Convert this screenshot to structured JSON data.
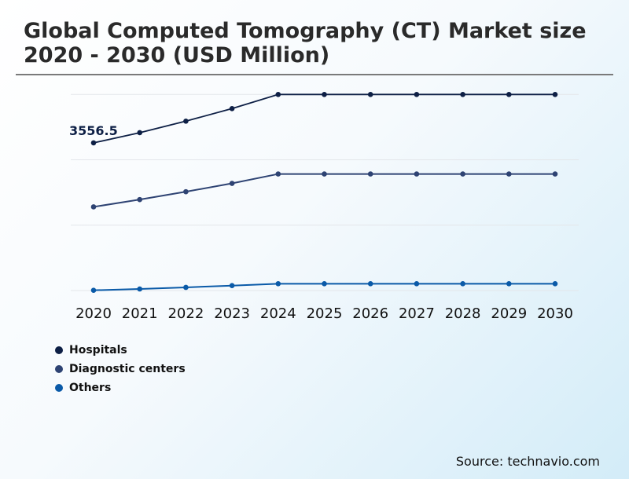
{
  "title": "Global Computed Tomography (CT) Market size 2020 - 2030 (USD Million)",
  "source": "Source: technavio.com",
  "chart_data": {
    "type": "line",
    "title": "Global Computed Tomography (CT) Market size 2020 - 2030 (USD Million)",
    "xlabel": "",
    "ylabel": "",
    "categories": [
      "2020",
      "2021",
      "2022",
      "2023",
      "2024",
      "2025",
      "2026",
      "2027",
      "2028",
      "2029",
      "2030"
    ],
    "ylim": [
      0,
      4722
    ],
    "grid": true,
    "legend_position": "bottom-left",
    "series": [
      {
        "name": "Hospitals",
        "color": "#0d1f45",
        "values": [
          3556.5,
          3802,
          4079,
          4382,
          4722,
          4722,
          4722,
          4722,
          4722,
          4722,
          4722
        ]
      },
      {
        "name": "Diagnostic centers",
        "color": "#2e4373",
        "values": [
          2015,
          2191,
          2380,
          2581,
          2807,
          2807,
          2807,
          2807,
          2807,
          2807,
          2807
        ]
      },
      {
        "name": "Others",
        "color": "#0a5aa8",
        "values": [
          6,
          38,
          76,
          119,
          164,
          164,
          164,
          164,
          164,
          164,
          164
        ]
      }
    ],
    "annotations": [
      {
        "series": "Hospitals",
        "x": "2020",
        "label": "3556.5"
      }
    ]
  }
}
